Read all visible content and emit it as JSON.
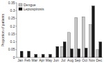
{
  "chart_data": {
    "type": "bar",
    "categories": [
      "Jan",
      "Feb",
      "Mar",
      "Apr",
      "May",
      "Jun",
      "Jul",
      "Aug",
      "Sep",
      "Oct",
      "Nov",
      "Dec"
    ],
    "series": [
      {
        "name": "Dengue",
        "color": "#c8c8c8",
        "values": [
          0.0,
          0.0,
          0.0,
          0.0,
          0.0,
          0.0,
          0.07,
          0.16,
          0.255,
          0.26,
          0.21,
          0.05
        ]
      },
      {
        "name": "Leptospirosis",
        "color": "#1a1a1a",
        "values": [
          0.04,
          0.04,
          0.02,
          0.02,
          0.02,
          0.07,
          0.1,
          0.055,
          0.055,
          0.06,
          0.33,
          0.1
        ]
      }
    ],
    "ylabel": "Proportion of patients",
    "ylim": [
      0,
      0.35
    ],
    "yticks": [
      0,
      0.05,
      0.1,
      0.15,
      0.2,
      0.25,
      0.3,
      0.35
    ],
    "legend": "upper left"
  }
}
